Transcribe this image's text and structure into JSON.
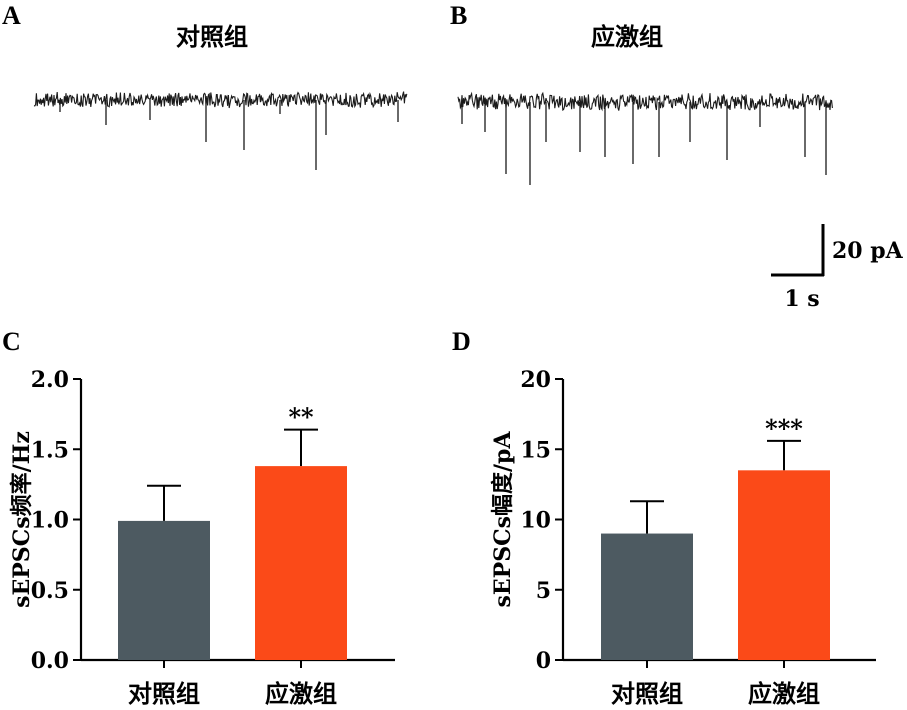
{
  "panels": {
    "A": {
      "letter": "A",
      "title": "对照组"
    },
    "B": {
      "letter": "B",
      "title": "应激组"
    }
  },
  "scale_bar": {
    "vertical_label": "20 pA",
    "horizontal_label": "1 s"
  },
  "colors": {
    "control": "#4d5a61",
    "stress": "#fb4a18",
    "trace": "#1a1a1a",
    "axis": "#000000"
  },
  "chart_data": [
    {
      "panel": "C",
      "type": "bar",
      "categories": [
        "对照组",
        "应激组"
      ],
      "values": [
        0.99,
        1.38
      ],
      "errors": [
        0.25,
        0.26
      ],
      "significance": [
        "",
        "**"
      ],
      "ylabel": "sEPSCs频率/Hz",
      "ylim": [
        0,
        2.0
      ],
      "yticks": [
        0,
        0.5,
        1.0,
        1.5,
        2.0
      ],
      "ytick_labels": [
        "0.0",
        "0.5",
        "1.0",
        "1.5",
        "2.0"
      ]
    },
    {
      "panel": "D",
      "type": "bar",
      "categories": [
        "对照组",
        "应激组"
      ],
      "values": [
        9.0,
        13.5
      ],
      "errors": [
        2.3,
        2.1
      ],
      "significance": [
        "",
        "***"
      ],
      "ylabel": "sEPSCs幅度/pA",
      "ylim": [
        0,
        20
      ],
      "yticks": [
        0,
        5,
        10,
        15,
        20
      ],
      "ytick_labels": [
        "0",
        "5",
        "10",
        "15",
        "20"
      ]
    }
  ]
}
